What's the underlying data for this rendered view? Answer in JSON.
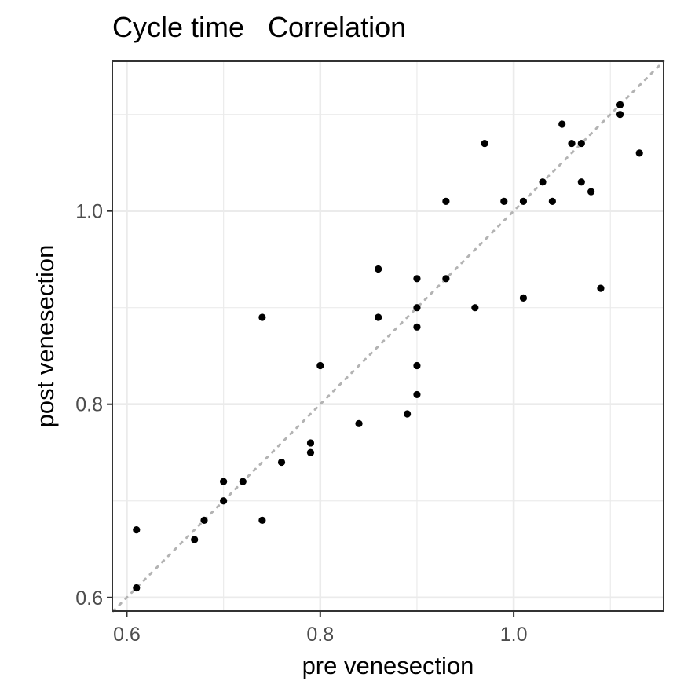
{
  "chart_data": {
    "type": "scatter",
    "title": "Cycle time   Correlation",
    "xlabel": "pre venesection",
    "ylabel": "post venesection",
    "xlim": [
      0.585,
      1.155
    ],
    "ylim": [
      0.586,
      1.155
    ],
    "x_major_ticks": [
      0.6,
      0.8,
      1.0
    ],
    "x_tick_labels": [
      "0.6",
      "0.8",
      "1.0"
    ],
    "x_minor_ticks": [
      0.7,
      0.9,
      1.1
    ],
    "y_major_ticks": [
      0.6,
      0.8,
      1.0
    ],
    "y_tick_labels": [
      "0.6",
      "0.8",
      "1.0"
    ],
    "y_minor_ticks": [
      0.7,
      0.9,
      1.1
    ],
    "grid": true,
    "reference_line": {
      "type": "identity",
      "style": "dotted",
      "color": "#b3b3b3"
    },
    "point_color": "#000000",
    "points": [
      {
        "x": 0.61,
        "y": 0.67
      },
      {
        "x": 0.61,
        "y": 0.61
      },
      {
        "x": 0.67,
        "y": 0.66
      },
      {
        "x": 0.68,
        "y": 0.68
      },
      {
        "x": 0.7,
        "y": 0.72
      },
      {
        "x": 0.7,
        "y": 0.7
      },
      {
        "x": 0.72,
        "y": 0.72
      },
      {
        "x": 0.74,
        "y": 0.89
      },
      {
        "x": 0.74,
        "y": 0.68
      },
      {
        "x": 0.76,
        "y": 0.74
      },
      {
        "x": 0.79,
        "y": 0.76
      },
      {
        "x": 0.79,
        "y": 0.75
      },
      {
        "x": 0.8,
        "y": 0.84
      },
      {
        "x": 0.84,
        "y": 0.78
      },
      {
        "x": 0.86,
        "y": 0.94
      },
      {
        "x": 0.86,
        "y": 0.89
      },
      {
        "x": 0.89,
        "y": 0.79
      },
      {
        "x": 0.9,
        "y": 0.93
      },
      {
        "x": 0.9,
        "y": 0.9
      },
      {
        "x": 0.9,
        "y": 0.88
      },
      {
        "x": 0.9,
        "y": 0.84
      },
      {
        "x": 0.9,
        "y": 0.81
      },
      {
        "x": 0.93,
        "y": 1.01
      },
      {
        "x": 0.93,
        "y": 0.93
      },
      {
        "x": 0.96,
        "y": 0.9
      },
      {
        "x": 0.97,
        "y": 1.07
      },
      {
        "x": 0.99,
        "y": 1.01
      },
      {
        "x": 1.01,
        "y": 1.01
      },
      {
        "x": 1.01,
        "y": 0.91
      },
      {
        "x": 1.03,
        "y": 1.03
      },
      {
        "x": 1.04,
        "y": 1.01
      },
      {
        "x": 1.05,
        "y": 1.09
      },
      {
        "x": 1.06,
        "y": 1.07
      },
      {
        "x": 1.07,
        "y": 1.07
      },
      {
        "x": 1.07,
        "y": 1.03
      },
      {
        "x": 1.08,
        "y": 1.02
      },
      {
        "x": 1.09,
        "y": 0.92
      },
      {
        "x": 1.11,
        "y": 1.11
      },
      {
        "x": 1.11,
        "y": 1.1
      },
      {
        "x": 1.13,
        "y": 1.06
      }
    ]
  }
}
